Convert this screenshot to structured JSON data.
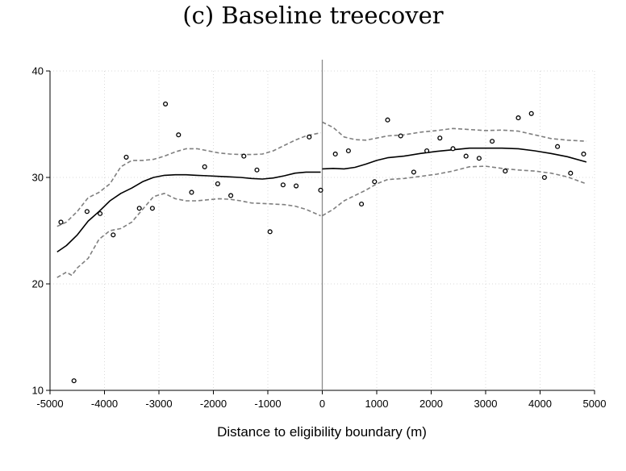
{
  "chart_data": {
    "type": "scatter",
    "title": "(c) Baseline treecover",
    "xlabel": "Distance to eligibility boundary (m)",
    "ylabel": "",
    "xlim": [
      -5000,
      5000
    ],
    "ylim": [
      10,
      40
    ],
    "x_ticks": [
      -5000,
      -4000,
      -3000,
      -2000,
      -1000,
      0,
      1000,
      2000,
      3000,
      4000,
      5000
    ],
    "y_ticks": [
      10,
      20,
      30,
      40
    ],
    "grid": true,
    "cutoff": 0,
    "points": [
      [
        -4800,
        25.8
      ],
      [
        -4320,
        26.8
      ],
      [
        -4080,
        26.6
      ],
      [
        -3840,
        24.6
      ],
      [
        -3600,
        31.9
      ],
      [
        -3360,
        27.1
      ],
      [
        -3120,
        27.1
      ],
      [
        -2880,
        36.9
      ],
      [
        -2640,
        34.0
      ],
      [
        -2400,
        28.6
      ],
      [
        -2160,
        31.0
      ],
      [
        -1920,
        29.4
      ],
      [
        -1680,
        28.3
      ],
      [
        -1440,
        32.0
      ],
      [
        -1200,
        30.7
      ],
      [
        -960,
        24.9
      ],
      [
        -720,
        29.3
      ],
      [
        -480,
        29.2
      ],
      [
        -240,
        33.8
      ],
      [
        -30,
        28.8
      ],
      [
        -4560,
        10.9
      ],
      [
        240,
        32.2
      ],
      [
        480,
        32.5
      ],
      [
        720,
        27.5
      ],
      [
        960,
        29.6
      ],
      [
        1200,
        35.4
      ],
      [
        1440,
        33.9
      ],
      [
        1680,
        30.5
      ],
      [
        1920,
        32.5
      ],
      [
        2160,
        33.7
      ],
      [
        2400,
        32.7
      ],
      [
        2640,
        32.0
      ],
      [
        2880,
        31.8
      ],
      [
        3120,
        33.4
      ],
      [
        3360,
        30.6
      ],
      [
        3600,
        35.6
      ],
      [
        3840,
        36.0
      ],
      [
        4080,
        30.0
      ],
      [
        4320,
        32.9
      ],
      [
        4560,
        30.4
      ],
      [
        4800,
        32.2
      ]
    ],
    "series": [
      {
        "role": "fit",
        "segments": [
          [
            [
              -4870,
              23.0
            ],
            [
              -4700,
              23.6
            ],
            [
              -4500,
              24.6
            ],
            [
              -4300,
              25.9
            ],
            [
              -4100,
              26.8
            ],
            [
              -3900,
              27.8
            ],
            [
              -3700,
              28.5
            ],
            [
              -3500,
              29.0
            ],
            [
              -3300,
              29.6
            ],
            [
              -3100,
              30.0
            ],
            [
              -2900,
              30.2
            ],
            [
              -2700,
              30.25
            ],
            [
              -2500,
              30.25
            ],
            [
              -2300,
              30.2
            ],
            [
              -2100,
              30.15
            ],
            [
              -1900,
              30.1
            ],
            [
              -1700,
              30.05
            ],
            [
              -1500,
              30.0
            ],
            [
              -1300,
              29.9
            ],
            [
              -1100,
              29.85
            ],
            [
              -900,
              29.95
            ],
            [
              -700,
              30.15
            ],
            [
              -500,
              30.4
            ],
            [
              -300,
              30.5
            ],
            [
              -30,
              30.5
            ]
          ],
          [
            [
              0,
              30.8
            ],
            [
              200,
              30.85
            ],
            [
              400,
              30.8
            ],
            [
              600,
              30.95
            ],
            [
              800,
              31.25
            ],
            [
              1000,
              31.6
            ],
            [
              1200,
              31.85
            ],
            [
              1500,
              32.0
            ],
            [
              1800,
              32.25
            ],
            [
              2100,
              32.45
            ],
            [
              2400,
              32.6
            ],
            [
              2700,
              32.75
            ],
            [
              3000,
              32.75
            ],
            [
              3300,
              32.75
            ],
            [
              3600,
              32.7
            ],
            [
              3900,
              32.5
            ],
            [
              4200,
              32.25
            ],
            [
              4500,
              31.95
            ],
            [
              4850,
              31.45
            ]
          ]
        ]
      },
      {
        "role": "ci-upper",
        "segments": [
          [
            [
              -4870,
              25.4
            ],
            [
              -4700,
              25.8
            ],
            [
              -4500,
              26.8
            ],
            [
              -4300,
              28.1
            ],
            [
              -4100,
              28.6
            ],
            [
              -3900,
              29.4
            ],
            [
              -3700,
              31.0
            ],
            [
              -3500,
              31.6
            ],
            [
              -3300,
              31.6
            ],
            [
              -3100,
              31.7
            ],
            [
              -2900,
              32.0
            ],
            [
              -2700,
              32.4
            ],
            [
              -2500,
              32.7
            ],
            [
              -2300,
              32.7
            ],
            [
              -2100,
              32.5
            ],
            [
              -1900,
              32.3
            ],
            [
              -1700,
              32.2
            ],
            [
              -1500,
              32.15
            ],
            [
              -1300,
              32.15
            ],
            [
              -1100,
              32.2
            ],
            [
              -900,
              32.5
            ],
            [
              -700,
              33.0
            ],
            [
              -500,
              33.5
            ],
            [
              -300,
              33.9
            ],
            [
              -30,
              34.2
            ]
          ],
          [
            [
              0,
              35.2
            ],
            [
              200,
              34.7
            ],
            [
              400,
              33.8
            ],
            [
              600,
              33.55
            ],
            [
              800,
              33.5
            ],
            [
              1000,
              33.7
            ],
            [
              1200,
              33.9
            ],
            [
              1500,
              34.0
            ],
            [
              1800,
              34.25
            ],
            [
              2100,
              34.4
            ],
            [
              2400,
              34.6
            ],
            [
              2700,
              34.5
            ],
            [
              3000,
              34.4
            ],
            [
              3300,
              34.45
            ],
            [
              3600,
              34.35
            ],
            [
              3900,
              34.0
            ],
            [
              4200,
              33.65
            ],
            [
              4500,
              33.5
            ],
            [
              4850,
              33.4
            ]
          ]
        ]
      },
      {
        "role": "ci-lower",
        "segments": [
          [
            [
              -4870,
              20.6
            ],
            [
              -4700,
              21.1
            ],
            [
              -4600,
              20.8
            ],
            [
              -4500,
              21.5
            ],
            [
              -4300,
              22.4
            ],
            [
              -4100,
              24.2
            ],
            [
              -3900,
              25.0
            ],
            [
              -3700,
              25.2
            ],
            [
              -3500,
              25.8
            ],
            [
              -3300,
              27.0
            ],
            [
              -3100,
              28.2
            ],
            [
              -2900,
              28.5
            ],
            [
              -2700,
              28.0
            ],
            [
              -2500,
              27.8
            ],
            [
              -2300,
              27.8
            ],
            [
              -2100,
              27.9
            ],
            [
              -1900,
              28.0
            ],
            [
              -1700,
              27.95
            ],
            [
              -1500,
              27.8
            ],
            [
              -1300,
              27.6
            ],
            [
              -1100,
              27.55
            ],
            [
              -900,
              27.5
            ],
            [
              -700,
              27.45
            ],
            [
              -500,
              27.3
            ],
            [
              -300,
              27.0
            ],
            [
              -30,
              26.4
            ]
          ],
          [
            [
              0,
              26.4
            ],
            [
              200,
              27.0
            ],
            [
              400,
              27.8
            ],
            [
              600,
              28.3
            ],
            [
              800,
              28.8
            ],
            [
              1000,
              29.4
            ],
            [
              1200,
              29.8
            ],
            [
              1500,
              29.9
            ],
            [
              1800,
              30.1
            ],
            [
              2100,
              30.3
            ],
            [
              2400,
              30.6
            ],
            [
              2700,
              31.0
            ],
            [
              3000,
              31.05
            ],
            [
              3300,
              30.85
            ],
            [
              3600,
              30.7
            ],
            [
              3900,
              30.6
            ],
            [
              4200,
              30.4
            ],
            [
              4500,
              30.05
            ],
            [
              4850,
              29.4
            ]
          ]
        ]
      }
    ]
  }
}
